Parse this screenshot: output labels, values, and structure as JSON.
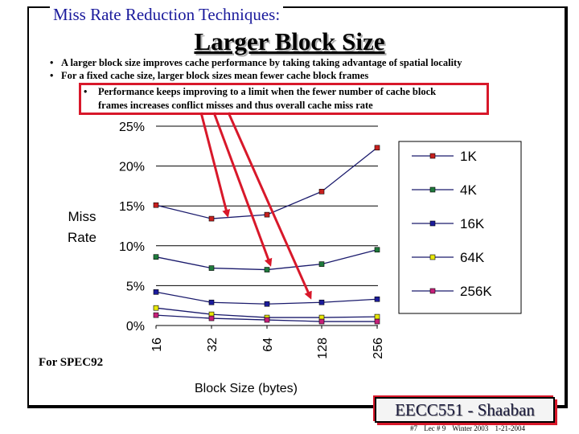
{
  "slide": {
    "top_title": "Miss Rate Reduction Techniques:",
    "main_title": "Larger Block Size",
    "bullets": [
      "A larger block size improves cache performance by taking taking advantage of spatial locality",
      "For a fixed cache size, larger block sizes mean fewer cache block frames"
    ],
    "sub_bullet_lines": [
      "Performance keeps improving to a limit  when  the fewer number of cache block",
      "frames increases conflict misses and thus overall cache miss rate"
    ],
    "spec_label": "For SPEC92",
    "footer_title": "EECC551 - Shaaban",
    "footer_meta": [
      "#7",
      "Lec # 9",
      "Winter 2003",
      "1-21-2004"
    ]
  },
  "colors": {
    "title_blue": "#1a1a9c",
    "highlight_red": "#d8182a"
  },
  "chart_data": {
    "type": "line",
    "x": [
      "16",
      "32",
      "64",
      "128",
      "256"
    ],
    "xlabel": "Block Size (bytes)",
    "ylabel_lines": [
      "Miss",
      "Rate"
    ],
    "yticks": [
      "0%",
      "5%",
      "10%",
      "15%",
      "20%",
      "25%"
    ],
    "ylim": [
      0,
      25
    ],
    "legend_position": "right",
    "series": [
      {
        "name": "1K",
        "color": "#c8201e",
        "values": [
          15.1,
          13.4,
          13.9,
          16.8,
          22.3
        ]
      },
      {
        "name": "4K",
        "color": "#1f7a3c",
        "values": [
          8.6,
          7.2,
          7.0,
          7.7,
          9.5
        ]
      },
      {
        "name": "16K",
        "color": "#1c1c9c",
        "values": [
          4.2,
          2.9,
          2.7,
          2.9,
          3.3
        ]
      },
      {
        "name": "64K",
        "color": "#e8e80a",
        "values": [
          2.2,
          1.4,
          1.0,
          1.0,
          1.1
        ]
      },
      {
        "name": "256K",
        "color": "#c8207a",
        "values": [
          1.3,
          0.9,
          0.7,
          0.5,
          0.5
        ]
      }
    ]
  }
}
